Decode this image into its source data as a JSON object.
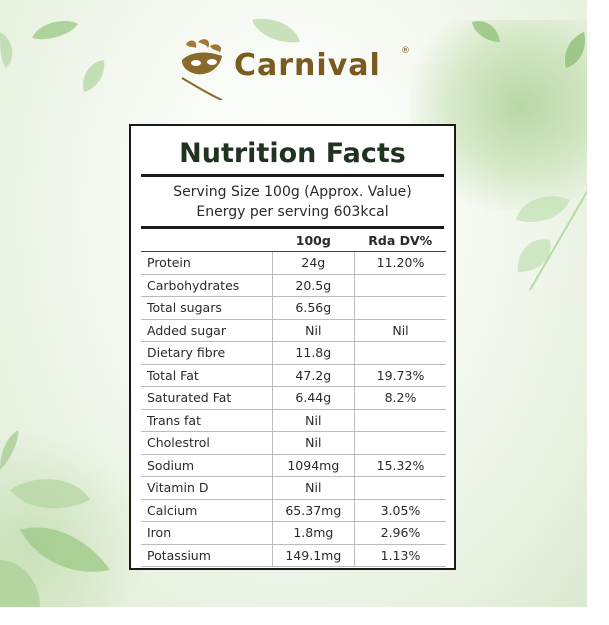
{
  "brand": {
    "name": "Carnival",
    "registered_mark": "®"
  },
  "colors": {
    "brand_gold": "#7a5a1e",
    "title_green": "#1f3320",
    "leaf_green": "#9fcb8a"
  },
  "panel": {
    "title": "Nutrition Facts",
    "serving_size": "Serving Size 100g (Approx. Value)",
    "energy": "Energy per serving 603kcal",
    "columns": [
      "",
      "100g",
      "Rda DV%"
    ],
    "rows": [
      {
        "nutrient": "Protein",
        "per_100g": "24g",
        "rda": "11.20%"
      },
      {
        "nutrient": "Carbohydrates",
        "per_100g": "20.5g",
        "rda": ""
      },
      {
        "nutrient": "Total sugars",
        "per_100g": "6.56g",
        "rda": ""
      },
      {
        "nutrient": "Added sugar",
        "per_100g": "Nil",
        "rda": "Nil"
      },
      {
        "nutrient": "Dietary fibre",
        "per_100g": "11.8g",
        "rda": ""
      },
      {
        "nutrient": "Total Fat",
        "per_100g": "47.2g",
        "rda": "19.73%"
      },
      {
        "nutrient": "Saturated Fat",
        "per_100g": "6.44g",
        "rda": "8.2%"
      },
      {
        "nutrient": "Trans fat",
        "per_100g": "Nil",
        "rda": ""
      },
      {
        "nutrient": "Cholestrol",
        "per_100g": "Nil",
        "rda": ""
      },
      {
        "nutrient": "Sodium",
        "per_100g": "1094mg",
        "rda": "15.32%"
      },
      {
        "nutrient": "Vitamin D",
        "per_100g": "Nil",
        "rda": ""
      },
      {
        "nutrient": "Calcium",
        "per_100g": "65.37mg",
        "rda": "3.05%"
      },
      {
        "nutrient": "Iron",
        "per_100g": "1.8mg",
        "rda": "2.96%"
      },
      {
        "nutrient": "Potassium",
        "per_100g": "149.1mg",
        "rda": "1.13%"
      }
    ]
  }
}
